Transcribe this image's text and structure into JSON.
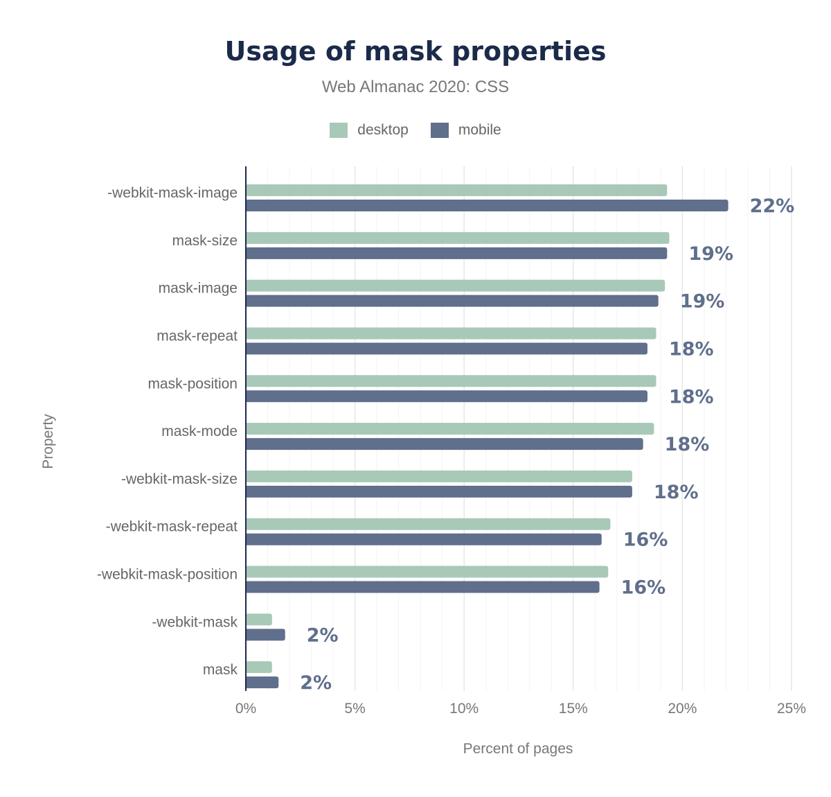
{
  "chart_data": {
    "type": "bar",
    "orientation": "horizontal",
    "title": "Usage of mask properties",
    "subtitle": "Web Almanac 2020: CSS",
    "xlabel": "Percent of pages",
    "ylabel": "Property",
    "xlim": [
      0,
      25
    ],
    "xticks": [
      "0%",
      "5%",
      "10%",
      "15%",
      "20%",
      "25%"
    ],
    "grid": true,
    "legend_position": "top",
    "categories": [
      "-webkit-mask-image",
      "mask-size",
      "mask-image",
      "mask-repeat",
      "mask-position",
      "mask-mode",
      "-webkit-mask-size",
      "-webkit-mask-repeat",
      "-webkit-mask-position",
      "-webkit-mask",
      "mask"
    ],
    "series": [
      {
        "name": "desktop",
        "color": "#a8c9b8",
        "values": [
          19.3,
          19.4,
          19.2,
          18.8,
          18.8,
          18.7,
          17.7,
          16.7,
          16.6,
          1.2,
          1.2
        ]
      },
      {
        "name": "mobile",
        "color": "#5f6f8c",
        "values": [
          22.1,
          19.3,
          18.9,
          18.4,
          18.4,
          18.2,
          17.7,
          16.3,
          16.2,
          1.8,
          1.5
        ]
      }
    ],
    "data_labels": [
      "22%",
      "19%",
      "19%",
      "18%",
      "18%",
      "18%",
      "18%",
      "16%",
      "16%",
      "2%",
      "2%"
    ]
  }
}
